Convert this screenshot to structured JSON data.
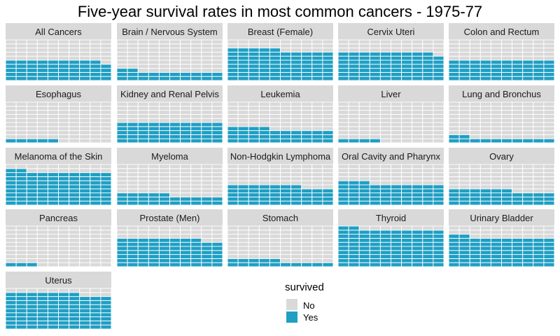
{
  "chart_data": {
    "type": "waffle",
    "title": "Five-year survival rates in most common cancers - 1975-77",
    "grid": {
      "cols": 10,
      "rows": 10
    },
    "colors": {
      "No": "#d9d9d9",
      "Yes": "#1f9fc4",
      "strip": "#d9d9d9",
      "panel_bg": "#ebebeb"
    },
    "legend": {
      "title": "survived",
      "position": "bottom-right",
      "entries": [
        "No",
        "Yes"
      ]
    },
    "panels": [
      {
        "name": "All Cancers",
        "survived_pct": 49
      },
      {
        "name": "Brain / Nervous System",
        "survived_pct": 22
      },
      {
        "name": "Breast (Female)",
        "survived_pct": 75
      },
      {
        "name": "Cervix Uteri",
        "survived_pct": 69
      },
      {
        "name": "Colon and Rectum",
        "survived_pct": 50
      },
      {
        "name": "Esophagus",
        "survived_pct": 5
      },
      {
        "name": "Kidney and Renal Pelvis",
        "survived_pct": 50
      },
      {
        "name": "Leukemia",
        "survived_pct": 34
      },
      {
        "name": "Liver",
        "survived_pct": 4
      },
      {
        "name": "Lung and Bronchus",
        "survived_pct": 12
      },
      {
        "name": "Melanoma of the Skin",
        "survived_pct": 82
      },
      {
        "name": "Myeloma",
        "survived_pct": 25
      },
      {
        "name": "Non-Hodgkin Lymphoma",
        "survived_pct": 47
      },
      {
        "name": "Oral Cavity and Pharynx",
        "survived_pct": 53
      },
      {
        "name": "Ovary",
        "survived_pct": 36
      },
      {
        "name": "Pancreas",
        "survived_pct": 3
      },
      {
        "name": "Prostate (Men)",
        "survived_pct": 68
      },
      {
        "name": "Stomach",
        "survived_pct": 15
      },
      {
        "name": "Thyroid",
        "survived_pct": 92
      },
      {
        "name": "Urinary Bladder",
        "survived_pct": 72
      },
      {
        "name": "Uterus",
        "survived_pct": 87
      }
    ]
  }
}
